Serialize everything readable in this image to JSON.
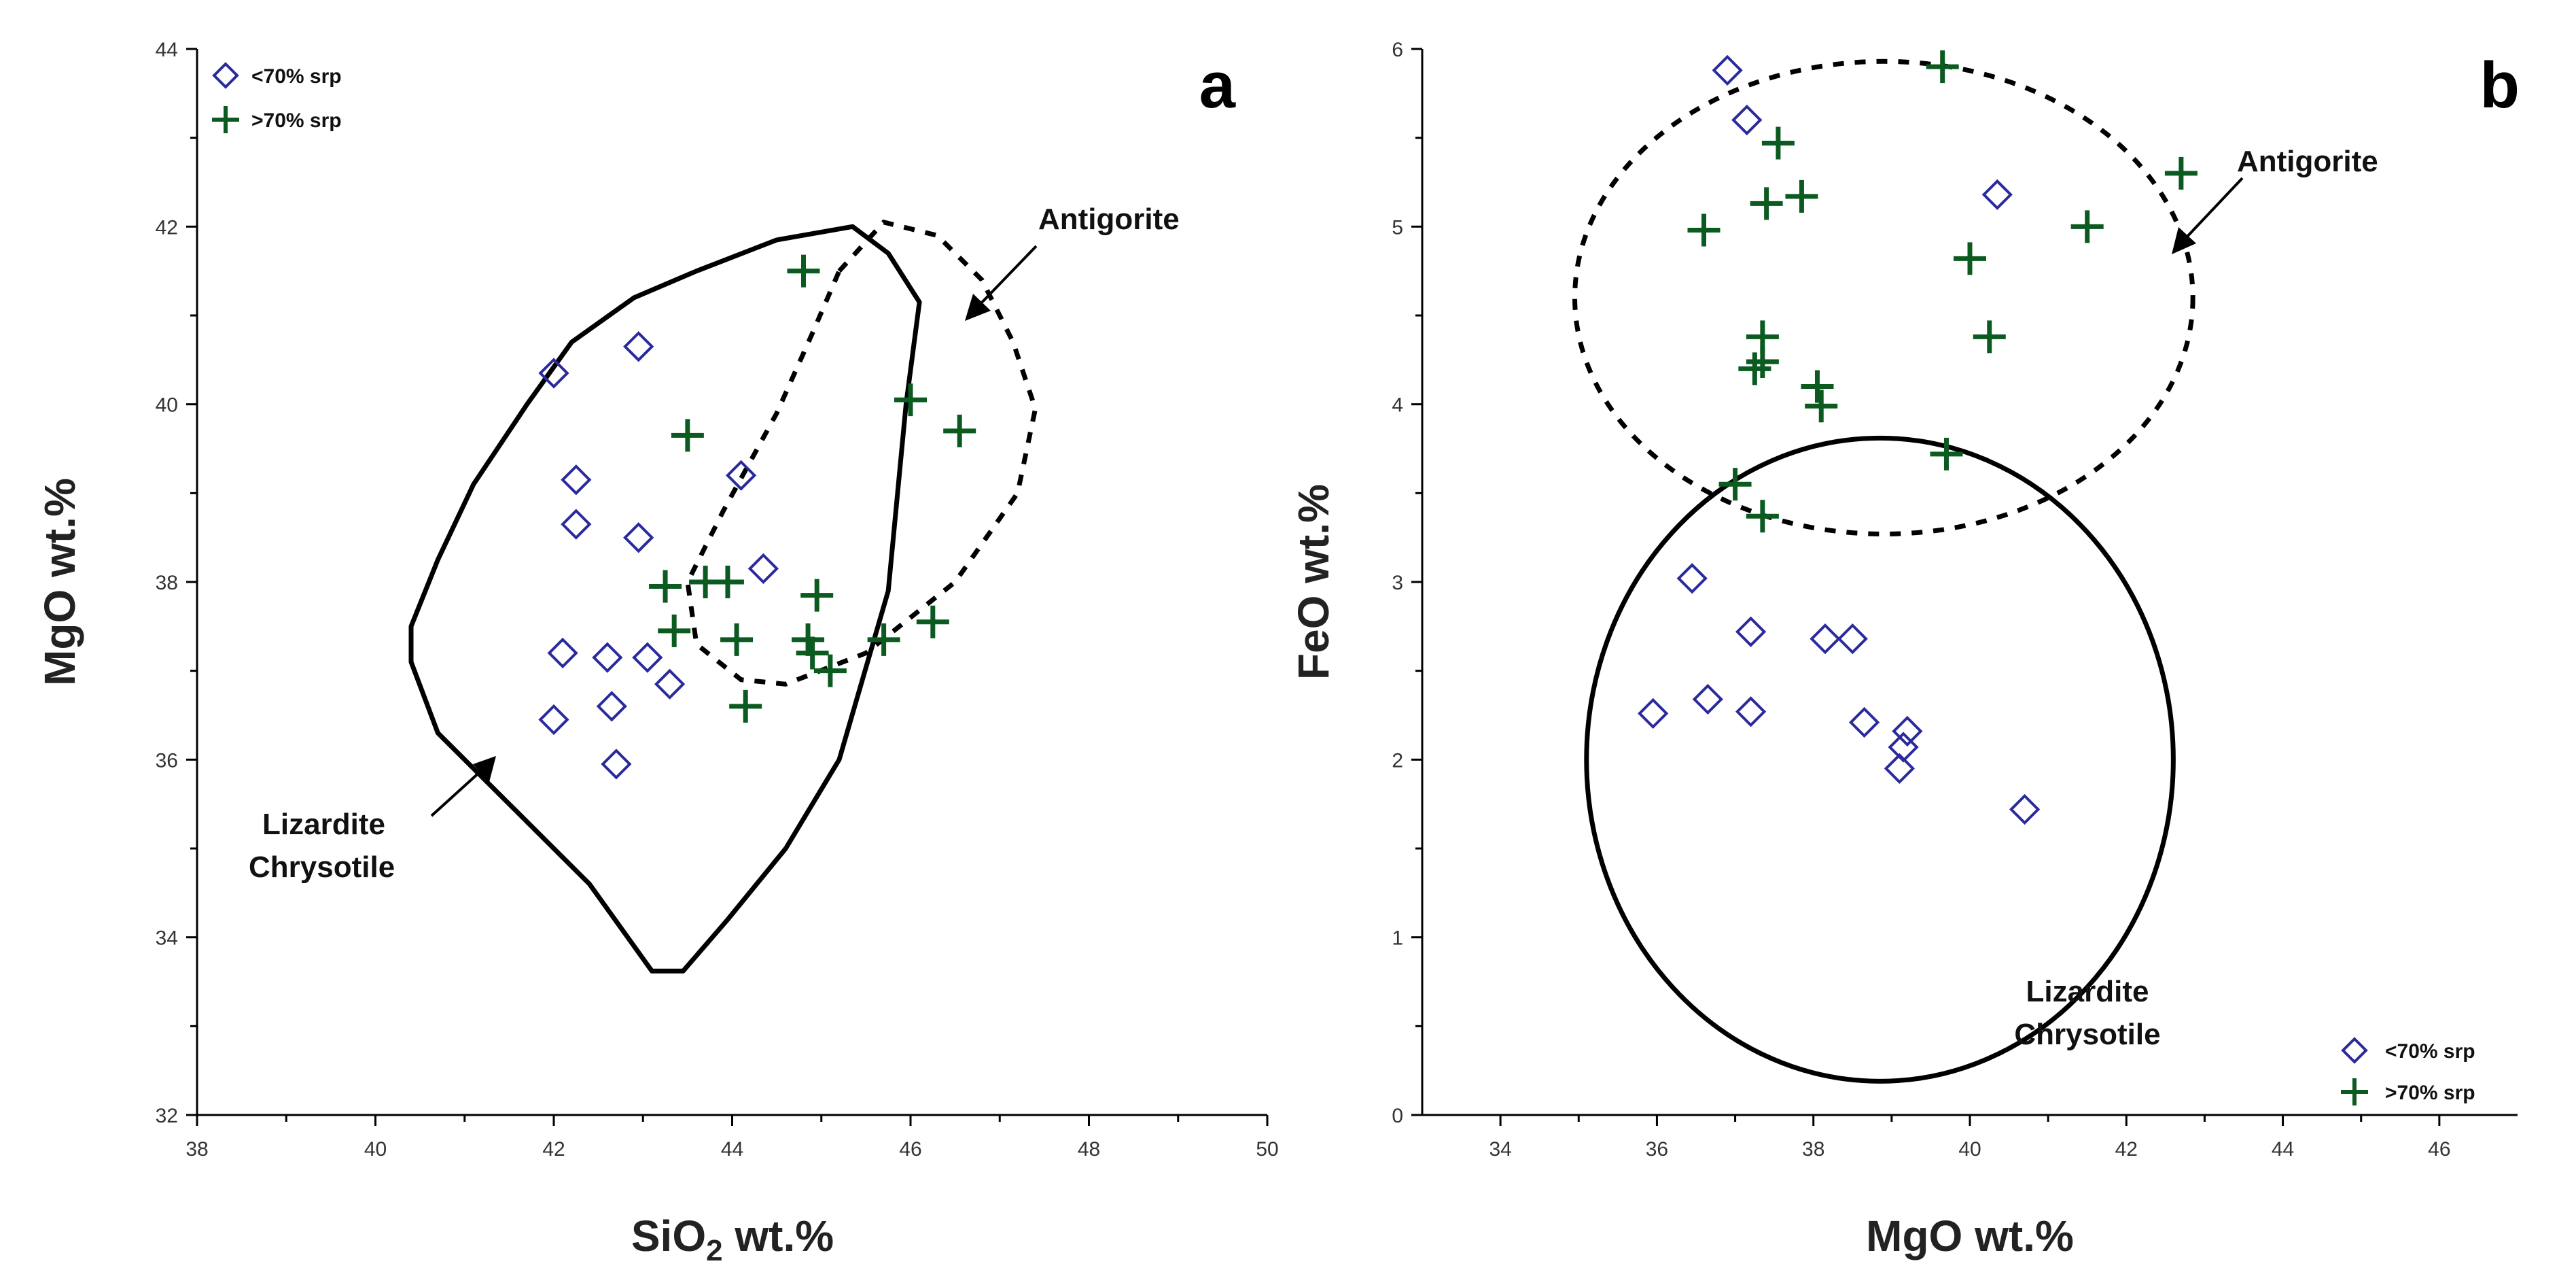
{
  "chart_data": [
    {
      "panel": "a",
      "type": "scatter",
      "xlabel": "SiO",
      "xlabel_sub": "2",
      "xlabel_suffix": " wt.%",
      "ylabel": "MgO wt.%",
      "xlim": [
        38,
        50
      ],
      "ylim": [
        32,
        44
      ],
      "xticks": [
        38,
        40,
        42,
        44,
        46,
        48,
        50
      ],
      "yticks": [
        32,
        34,
        36,
        38,
        40,
        42,
        44
      ],
      "legend_position": "top-left",
      "series": [
        {
          "name": "<70% srp",
          "marker": "diamond",
          "color": "#2a2a9c",
          "points": [
            [
              42.0,
              40.35
            ],
            [
              42.95,
              40.65
            ],
            [
              42.25,
              39.15
            ],
            [
              42.25,
              38.65
            ],
            [
              42.95,
              38.5
            ],
            [
              44.1,
              39.2
            ],
            [
              44.35,
              38.15
            ],
            [
              42.1,
              37.2
            ],
            [
              42.6,
              37.15
            ],
            [
              43.05,
              37.15
            ],
            [
              43.3,
              36.85
            ],
            [
              42.0,
              36.45
            ],
            [
              42.65,
              36.6
            ],
            [
              42.7,
              35.95
            ]
          ]
        },
        {
          "name": ">70% srp",
          "marker": "plus",
          "color": "#0b5a20",
          "points": [
            [
              44.8,
              41.5
            ],
            [
              43.5,
              39.65
            ],
            [
              46.0,
              40.05
            ],
            [
              46.55,
              39.7
            ],
            [
              43.25,
              37.95
            ],
            [
              43.7,
              38.0
            ],
            [
              43.95,
              38.0
            ],
            [
              44.95,
              37.85
            ],
            [
              43.35,
              37.45
            ],
            [
              44.05,
              37.35
            ],
            [
              44.85,
              37.35
            ],
            [
              44.9,
              37.2
            ],
            [
              45.1,
              37.0
            ],
            [
              45.7,
              37.35
            ],
            [
              46.25,
              37.55
            ],
            [
              44.15,
              36.6
            ]
          ]
        }
      ],
      "fields": [
        {
          "name": "Lizardite Chrysotile field",
          "style": "solid",
          "outline": [
            [
              43.1,
              33.62
            ],
            [
              42.4,
              34.6
            ],
            [
              41.5,
              35.5
            ],
            [
              40.7,
              36.3
            ],
            [
              40.4,
              37.1
            ],
            [
              40.4,
              37.5
            ],
            [
              40.7,
              38.25
            ],
            [
              41.1,
              39.1
            ],
            [
              41.7,
              40.0
            ],
            [
              42.2,
              40.7
            ],
            [
              42.55,
              40.95
            ],
            [
              42.9,
              41.2
            ],
            [
              43.6,
              41.5
            ],
            [
              44.5,
              41.85
            ],
            [
              45.35,
              42.0
            ],
            [
              45.75,
              41.7
            ],
            [
              46.1,
              41.15
            ],
            [
              45.95,
              40.0
            ],
            [
              45.75,
              37.9
            ],
            [
              45.2,
              36.0
            ],
            [
              44.6,
              35.0
            ],
            [
              43.95,
              34.2
            ],
            [
              43.45,
              33.62
            ]
          ]
        },
        {
          "name": "Antigorite field",
          "style": "dashed",
          "outline": [
            [
              45.2,
              41.5
            ],
            [
              45.7,
              42.05
            ],
            [
              46.3,
              41.9
            ],
            [
              46.8,
              41.4
            ],
            [
              47.15,
              40.7
            ],
            [
              47.4,
              39.95
            ],
            [
              47.2,
              39.0
            ],
            [
              46.5,
              38.0
            ],
            [
              45.5,
              37.2
            ],
            [
              44.6,
              36.85
            ],
            [
              44.1,
              36.9
            ],
            [
              43.6,
              37.3
            ],
            [
              43.5,
              38.0
            ],
            [
              43.9,
              38.8
            ],
            [
              44.5,
              39.9
            ],
            [
              44.9,
              40.8
            ]
          ]
        }
      ],
      "annotations": [
        {
          "text": "Antigorite",
          "role": "antigorite-label"
        },
        {
          "text": "Lizardite",
          "role": "lizardite-label"
        },
        {
          "text": "Chrysotile",
          "role": "chrysotile-label"
        }
      ]
    },
    {
      "panel": "b",
      "type": "scatter",
      "xlabel": "MgO wt.%",
      "ylabel": "FeO wt.%",
      "xlim": [
        33,
        47
      ],
      "ylim": [
        0,
        6
      ],
      "xticks": [
        34,
        36,
        38,
        40,
        42,
        44,
        46
      ],
      "yticks": [
        0,
        1,
        2,
        3,
        4,
        5,
        6
      ],
      "legend_position": "bottom-right",
      "series": [
        {
          "name": "<70% srp",
          "marker": "diamond",
          "color": "#2a2a9c",
          "points": [
            [
              36.9,
              5.88
            ],
            [
              37.15,
              5.6
            ],
            [
              40.35,
              5.18
            ],
            [
              36.45,
              3.02
            ],
            [
              37.2,
              2.72
            ],
            [
              38.15,
              2.68
            ],
            [
              38.5,
              2.68
            ],
            [
              35.95,
              2.26
            ],
            [
              36.65,
              2.34
            ],
            [
              37.2,
              2.27
            ],
            [
              38.65,
              2.21
            ],
            [
              39.2,
              2.16
            ],
            [
              39.15,
              2.07
            ],
            [
              39.1,
              1.95
            ],
            [
              40.7,
              1.72
            ]
          ]
        },
        {
          "name": ">70% srp",
          "marker": "plus",
          "color": "#0b5a20",
          "points": [
            [
              39.65,
              5.9
            ],
            [
              42.7,
              5.3
            ],
            [
              37.55,
              5.47
            ],
            [
              36.6,
              4.98
            ],
            [
              37.4,
              5.13
            ],
            [
              37.85,
              5.17
            ],
            [
              41.5,
              5.0
            ],
            [
              40.0,
              4.82
            ],
            [
              40.25,
              4.38
            ],
            [
              37.35,
              4.38
            ],
            [
              37.35,
              4.24
            ],
            [
              37.25,
              4.2
            ],
            [
              38.05,
              4.1
            ],
            [
              38.1,
              3.99
            ],
            [
              39.7,
              3.72
            ],
            [
              37.0,
              3.55
            ],
            [
              37.35,
              3.37
            ]
          ]
        }
      ],
      "fields": [
        {
          "name": "Antigorite field",
          "style": "dashed",
          "shape": "ellipse",
          "center": [
            38.9,
            4.6
          ],
          "radii": [
            3.95,
            1.33
          ]
        },
        {
          "name": "Lizardite Chrysotile field",
          "style": "solid",
          "shape": "ellipse",
          "center": [
            38.85,
            2.0
          ],
          "radii": [
            3.75,
            1.81
          ]
        }
      ],
      "annotations": [
        {
          "text": "Antigorite",
          "role": "antigorite-label"
        },
        {
          "text": "Lizardite",
          "role": "lizardite-label"
        },
        {
          "text": "Chrysotile",
          "role": "chrysotile-label"
        }
      ]
    }
  ]
}
